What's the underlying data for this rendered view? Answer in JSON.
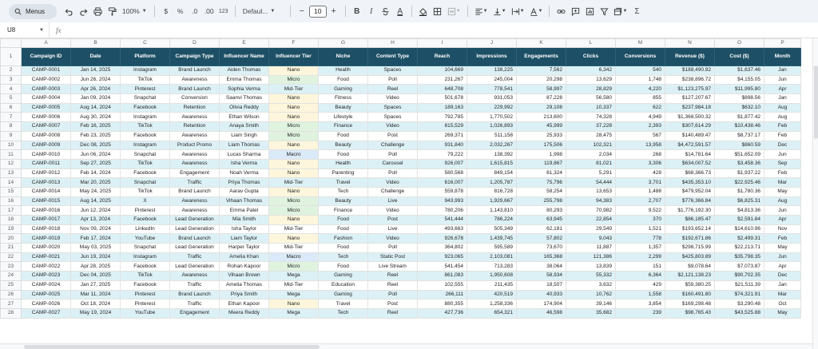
{
  "toolbar": {
    "menus_label": "Menus",
    "zoom": "100%",
    "currency": "$",
    "percent": "%",
    "dec_decrease": ".0",
    "dec_increase": ".00",
    "number_format": "123",
    "font_family": "Defaul...",
    "font_size": "10",
    "bold": "B",
    "italic": "I",
    "text_color": "A",
    "minus": "−",
    "plus": "+",
    "functions": "Σ"
  },
  "formula_bar": {
    "cell_ref": "U8",
    "fx": "fx"
  },
  "columns": [
    "A",
    "B",
    "C",
    "D",
    "E",
    "F",
    "G",
    "H",
    "I",
    "J",
    "K",
    "L",
    "M",
    "N",
    "O",
    "P"
  ],
  "headers": [
    "Campaign ID",
    "Date",
    "Platform",
    "Campaign Type",
    "Influencer Name",
    "Influencer Tier",
    "Niche",
    "Content Type",
    "Reach",
    "Impressions",
    "Engagements",
    "Clicks",
    "Conversions",
    "Revenue ($)",
    "Cost ($)",
    "Month"
  ],
  "rows": [
    [
      "CAMP-0001",
      "Jan 14, 2025",
      "Instagram",
      "Brand Launch",
      "Aiden Thomas",
      "Nano",
      "Health",
      "Spaces",
      "104,669",
      "138,225",
      "7,562",
      "6,342",
      "540",
      "$188,490.92",
      "$1,637.46",
      "Jan"
    ],
    [
      "CAMP-0002",
      "Jun 26, 2024",
      "TikTok",
      "Awareness",
      "Emma Thomas",
      "Micro",
      "Food",
      "Poll",
      "231,267",
      "245,004",
      "20,298",
      "13,629",
      "1,748",
      "$238,896.72",
      "$4,155.05",
      "Jun"
    ],
    [
      "CAMP-0003",
      "Apr 26, 2024",
      "Pinterest",
      "Brand Launch",
      "Sophia Verma",
      "Mid-Tier",
      "Gaming",
      "Reel",
      "648,708",
      "778,541",
      "58,997",
      "28,829",
      "4,220",
      "$1,123,275.97",
      "$11,995.80",
      "Apr"
    ],
    [
      "CAMP-0004",
      "Jan 09, 2024",
      "Snapchat",
      "Conversion",
      "Saanvi Thomas",
      "Nano",
      "Fitness",
      "Video",
      "501,678",
      "931,053",
      "87,228",
      "56,580",
      "855",
      "$127,207.67",
      "$898.56",
      "Jan"
    ],
    [
      "CAMP-0005",
      "Aug 14, 2024",
      "Facebook",
      "Retention",
      "Olivia Reddy",
      "Nano",
      "Beauty",
      "Spaces",
      "189,163",
      "229,992",
      "29,108",
      "10,337",
      "622",
      "$237,984.18",
      "$632.10",
      "Aug"
    ],
    [
      "CAMP-0006",
      "Aug 30, 2024",
      "Instagram",
      "Awareness",
      "Ethan Wilson",
      "Nano",
      "Lifestyle",
      "Spaces",
      "792,785",
      "1,770,502",
      "213,600",
      "74,328",
      "4,949",
      "$1,368,500.32",
      "$1,877.42",
      "Aug"
    ],
    [
      "CAMP-0007",
      "Feb 16, 2025",
      "TikTok",
      "Retention",
      "Anaya Smith",
      "Micro",
      "Finance",
      "Video",
      "815,529",
      "1,026,893",
      "45,999",
      "37,228",
      "2,393",
      "$307,614.29",
      "$10,438.46",
      "Feb"
    ],
    [
      "CAMP-0008",
      "Feb 23, 2025",
      "Facebook",
      "Awareness",
      "Liam Singh",
      "Micro",
      "Food",
      "Post",
      "269,371",
      "511,158",
      "25,933",
      "28,475",
      "567",
      "$140,489.47",
      "$8,737.17",
      "Feb"
    ],
    [
      "CAMP-0009",
      "Dec 08, 2025",
      "Instagram",
      "Product Promo",
      "Liam Thomas",
      "Nano",
      "Beauty",
      "Challenge",
      "931,840",
      "2,032,267",
      "175,506",
      "102,321",
      "13,958",
      "$4,472,591.57",
      "$860.59",
      "Dec"
    ],
    [
      "CAMP-0010",
      "Jun 06, 2024",
      "Snapchat",
      "Awareness",
      "Lucas Sharma",
      "Macro",
      "Food",
      "Poll",
      "79,222",
      "138,392",
      "1,998",
      "2,034",
      "268",
      "$14,781.64",
      "$51,652.09",
      "Jun"
    ],
    [
      "CAMP-0011",
      "Sep 27, 2025",
      "TikTok",
      "Awareness",
      "Isha Verma",
      "Nano",
      "Health",
      "Carousel",
      "926,007",
      "1,615,815",
      "119,867",
      "81,021",
      "3,306",
      "$634,007.52",
      "$3,458.36",
      "Sep"
    ],
    [
      "CAMP-0012",
      "Feb 14, 2024",
      "Facebook",
      "Engagement",
      "Noah Verma",
      "Nano",
      "Parenting",
      "Poll",
      "580,568",
      "849,154",
      "81,324",
      "5,291",
      "428",
      "$68,366.73",
      "$1,937.22",
      "Feb"
    ],
    [
      "CAMP-0013",
      "Mar 20, 2025",
      "Snapchat",
      "Traffic",
      "Priya Thomas",
      "Mid-Tier",
      "Travel",
      "Video",
      "616,007",
      "1,205,787",
      "75,796",
      "54,444",
      "3,701",
      "$435,353.10",
      "$22,925.46",
      "Mar"
    ],
    [
      "CAMP-0014",
      "May 24, 2025",
      "TikTok",
      "Brand Launch",
      "Aarav Gupta",
      "Nano",
      "Tech",
      "Challenge",
      "559,878",
      "816,728",
      "58,254",
      "13,653",
      "1,488",
      "$479,952.04",
      "$1,780.36",
      "May"
    ],
    [
      "CAMP-0015",
      "Aug 14, 2025",
      "X",
      "Awareness",
      "Vihaan Thomas",
      "Micro",
      "Beauty",
      "Live",
      "943,993",
      "1,929,667",
      "255,798",
      "94,383",
      "2,707",
      "$776,366.84",
      "$6,825.31",
      "Aug"
    ],
    [
      "CAMP-0016",
      "Jun 12, 2024",
      "Pinterest",
      "Awareness",
      "Emma Patel",
      "Micro",
      "Finance",
      "Video",
      "780,206",
      "1,143,810",
      "80,293",
      "70,982",
      "9,522",
      "$1,776,192.30",
      "$4,813.36",
      "Jun"
    ],
    [
      "CAMP-0017",
      "Apr 13, 2024",
      "Facebook",
      "Lead Generation",
      "Mia Smith",
      "Nano",
      "Food",
      "Post",
      "541,444",
      "786,224",
      "63,945",
      "22,854",
      "370",
      "$86,185.47",
      "$2,591.84",
      "Apr"
    ],
    [
      "CAMP-0018",
      "Nov 09, 2024",
      "LinkedIn",
      "Lead Generation",
      "Isha Taylor",
      "Mid-Tier",
      "Food",
      "Live",
      "493,663",
      "505,349",
      "62,181",
      "29,549",
      "1,521",
      "$193,652.14",
      "$14,610.96",
      "Nov"
    ],
    [
      "CAMP-0019",
      "Feb 17, 2024",
      "YouTube",
      "Brand Launch",
      "Liam Taylor",
      "Nano",
      "Fashion",
      "Video",
      "926,678",
      "1,439,745",
      "57,802",
      "9,043",
      "778",
      "$192,671.86",
      "$2,499.31",
      "Feb"
    ],
    [
      "CAMP-0020",
      "May 03, 2025",
      "Snapchat",
      "Lead Generation",
      "Harper Taylor",
      "Mid-Tier",
      "Food",
      "Poll",
      "364,802",
      "595,589",
      "73,670",
      "11,887",
      "1,357",
      "$298,715.99",
      "$22,213.71",
      "May"
    ],
    [
      "CAMP-0021",
      "Jun 19, 2024",
      "Instagram",
      "Traffic",
      "Amelia Khan",
      "Macro",
      "Tech",
      "Static Post",
      "923,065",
      "2,103,081",
      "165,368",
      "121,386",
      "2,299",
      "$425,803.89",
      "$35,798.35",
      "Jun"
    ],
    [
      "CAMP-0022",
      "Apr 28, 2025",
      "Facebook",
      "Lead Generation",
      "Rohan Kapoor",
      "Micro",
      "Food",
      "Live Stream",
      "541,454",
      "713,283",
      "38,064",
      "13,839",
      "151",
      "$9,078.64",
      "$7,073.87",
      "Apr"
    ],
    [
      "CAMP-0023",
      "Dec 04, 2025",
      "TikTok",
      "Awareness",
      "Vihaan Brown",
      "Mega",
      "Gaming",
      "Reel",
      "861,083",
      "1,950,608",
      "58,934",
      "55,332",
      "6,364",
      "$2,121,138.23",
      "$90,702.35",
      "Dec"
    ],
    [
      "CAMP-0024",
      "Jan 27, 2025",
      "Facebook",
      "Traffic",
      "Amelia Thomas",
      "Mid-Tier",
      "Education",
      "Reel",
      "102,555",
      "211,435",
      "18,507",
      "3,632",
      "429",
      "$59,380.25",
      "$21,511.39",
      "Jan"
    ],
    [
      "CAMP-0025",
      "Mar 11, 2024",
      "Pinterest",
      "Brand Launch",
      "Priya Smith",
      "Mega",
      "Gaming",
      "Poll",
      "266,111",
      "420,519",
      "40,933",
      "10,762",
      "1,558",
      "$160,491.80",
      "$74,321.91",
      "Mar"
    ],
    [
      "CAMP-0026",
      "Oct 18, 2024",
      "Pinterest",
      "Traffic",
      "Ethan Kapoor",
      "Nano",
      "Travel",
      "Post",
      "880,355",
      "1,258,336",
      "174,904",
      "39,146",
      "3,854",
      "$169,298.48",
      "$3,290.48",
      "Oct"
    ],
    [
      "CAMP-0027",
      "May 19, 2024",
      "YouTube",
      "Engagement",
      "Meera Reddy",
      "Mega",
      "Tech",
      "Reel",
      "427,736",
      "654,321",
      "46,598",
      "35,682",
      "239",
      "$98,765.43",
      "$43,525.88",
      "May"
    ]
  ]
}
